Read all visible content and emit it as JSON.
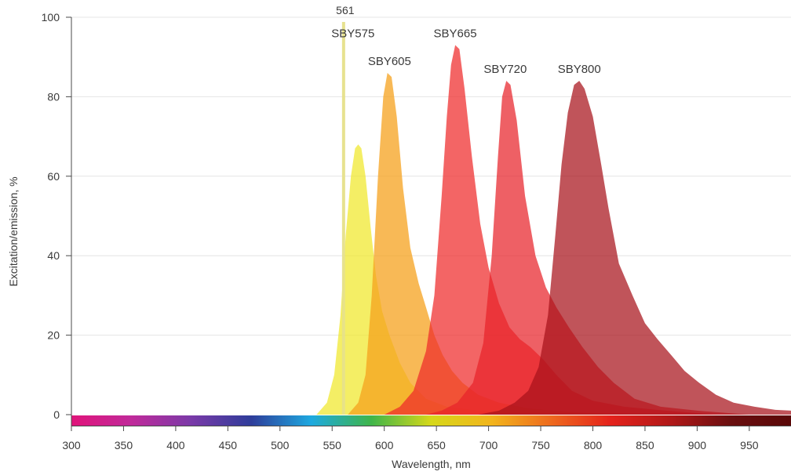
{
  "chart_data": {
    "type": "area",
    "title": "",
    "xlabel": "Wavelength, nm",
    "ylabel": "Excitation/emission, %",
    "xlim": [
      300,
      990
    ],
    "ylim": [
      0,
      100
    ],
    "x_ticks": [
      300,
      350,
      400,
      450,
      500,
      550,
      600,
      650,
      700,
      750,
      800,
      850,
      900,
      950
    ],
    "y_ticks": [
      0,
      20,
      40,
      60,
      80,
      100
    ],
    "grid": true,
    "legend": "none",
    "laser_line": {
      "label": "561",
      "x": 561,
      "color": "#e6e08a"
    },
    "spectrum_bar": [
      "#e0147a",
      "#c02a9a",
      "#7a3aa8",
      "#2e3d9a",
      "#1ea9e0",
      "#3fb54a",
      "#d6d81a",
      "#f2b51c",
      "#ee6a1e",
      "#e4221c",
      "#b01818",
      "#6a0f10",
      "#5a0808"
    ],
    "series": [
      {
        "name": "SBY575",
        "color": "#f0e82a",
        "opacity": 0.72,
        "points": [
          [
            535,
            0
          ],
          [
            545,
            3
          ],
          [
            552,
            10
          ],
          [
            558,
            25
          ],
          [
            563,
            45
          ],
          [
            568,
            60
          ],
          [
            572,
            67
          ],
          [
            575,
            68
          ],
          [
            578,
            67
          ],
          [
            582,
            60
          ],
          [
            587,
            47
          ],
          [
            592,
            35
          ],
          [
            598,
            26
          ],
          [
            605,
            20
          ],
          [
            615,
            13
          ],
          [
            625,
            8
          ],
          [
            640,
            4
          ],
          [
            660,
            2
          ],
          [
            690,
            1
          ],
          [
            750,
            0.5
          ],
          [
            820,
            0
          ]
        ]
      },
      {
        "name": "SBY605",
        "color": "#f5a21e",
        "opacity": 0.75,
        "points": [
          [
            565,
            0
          ],
          [
            575,
            3
          ],
          [
            582,
            10
          ],
          [
            588,
            30
          ],
          [
            594,
            60
          ],
          [
            599,
            80
          ],
          [
            603,
            86
          ],
          [
            607,
            85
          ],
          [
            612,
            75
          ],
          [
            618,
            57
          ],
          [
            625,
            42
          ],
          [
            633,
            33
          ],
          [
            640,
            27
          ],
          [
            648,
            20
          ],
          [
            656,
            15
          ],
          [
            665,
            11
          ],
          [
            675,
            8
          ],
          [
            690,
            5
          ],
          [
            710,
            3
          ],
          [
            740,
            1.5
          ],
          [
            790,
            0.5
          ],
          [
            840,
            0
          ]
        ]
      },
      {
        "name": "SBY665",
        "color": "#ee2a2a",
        "opacity": 0.72,
        "points": [
          [
            600,
            0
          ],
          [
            615,
            2
          ],
          [
            628,
            6
          ],
          [
            640,
            16
          ],
          [
            648,
            30
          ],
          [
            655,
            55
          ],
          [
            660,
            75
          ],
          [
            664,
            88
          ],
          [
            668,
            93
          ],
          [
            672,
            92
          ],
          [
            677,
            82
          ],
          [
            684,
            65
          ],
          [
            692,
            48
          ],
          [
            700,
            37
          ],
          [
            710,
            28
          ],
          [
            720,
            22
          ],
          [
            730,
            19
          ],
          [
            740,
            17
          ],
          [
            752,
            14
          ],
          [
            765,
            10
          ],
          [
            780,
            6
          ],
          [
            800,
            3.5
          ],
          [
            830,
            2
          ],
          [
            870,
            1
          ],
          [
            920,
            0
          ]
        ]
      },
      {
        "name": "SBY720",
        "color": "#e8222a",
        "opacity": 0.72,
        "points": [
          [
            640,
            0
          ],
          [
            655,
            1
          ],
          [
            670,
            3
          ],
          [
            685,
            8
          ],
          [
            695,
            18
          ],
          [
            703,
            40
          ],
          [
            709,
            65
          ],
          [
            713,
            80
          ],
          [
            717,
            84
          ],
          [
            721,
            83
          ],
          [
            727,
            74
          ],
          [
            735,
            55
          ],
          [
            745,
            40
          ],
          [
            755,
            32
          ],
          [
            765,
            27
          ],
          [
            777,
            22
          ],
          [
            790,
            17
          ],
          [
            805,
            12
          ],
          [
            820,
            8
          ],
          [
            840,
            4
          ],
          [
            865,
            2
          ],
          [
            900,
            1
          ],
          [
            950,
            0
          ]
        ]
      },
      {
        "name": "SBY800",
        "color": "#a8121a",
        "opacity": 0.72,
        "points": [
          [
            690,
            0
          ],
          [
            710,
            1
          ],
          [
            725,
            3
          ],
          [
            738,
            6
          ],
          [
            748,
            12
          ],
          [
            757,
            25
          ],
          [
            764,
            45
          ],
          [
            770,
            63
          ],
          [
            776,
            76
          ],
          [
            782,
            83
          ],
          [
            787,
            84
          ],
          [
            792,
            82
          ],
          [
            800,
            75
          ],
          [
            808,
            63
          ],
          [
            815,
            52
          ],
          [
            825,
            38
          ],
          [
            838,
            30
          ],
          [
            850,
            23
          ],
          [
            862,
            19
          ],
          [
            875,
            15
          ],
          [
            888,
            11
          ],
          [
            902,
            8
          ],
          [
            918,
            5
          ],
          [
            935,
            3
          ],
          [
            955,
            2
          ],
          [
            975,
            1.2
          ],
          [
            990,
            1
          ]
        ]
      }
    ],
    "label_positions": {
      "SBY575": [
        570,
        96
      ],
      "SBY605": [
        605,
        89
      ],
      "SBY665": [
        668,
        96
      ],
      "SBY720": [
        716,
        87
      ],
      "SBY800": [
        787,
        87
      ]
    }
  }
}
